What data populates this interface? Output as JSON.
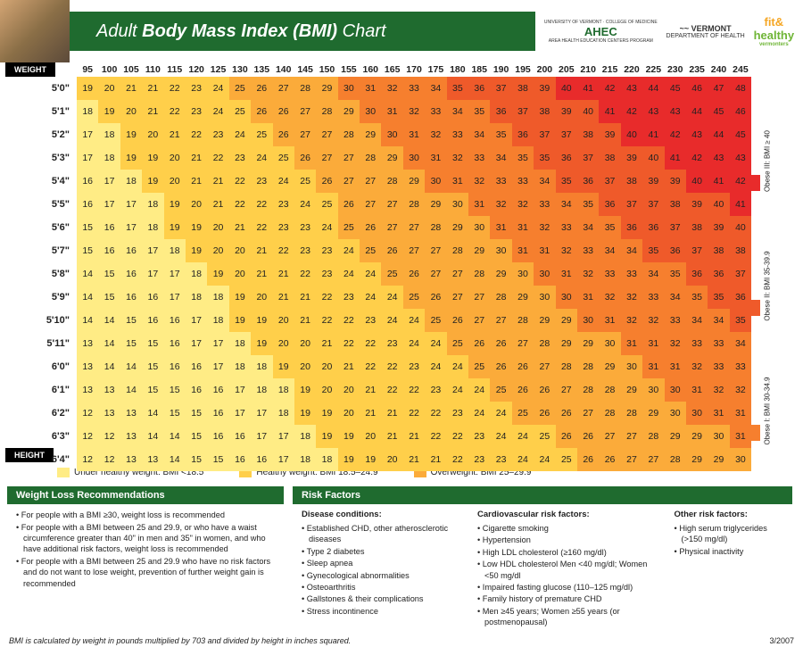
{
  "header": {
    "title_pre": "Adult ",
    "title_bold": "Body Mass Index (BMI)",
    "title_post": " Chart",
    "logos": {
      "ahec": "AHEC",
      "ahec_sub": "AREA HEALTH EDUCATION CENTERS PROGRAM",
      "ahec_top": "UNIVERSITY OF VERMONT · COLLEGE OF MEDICINE",
      "vt_top": "VERMONT",
      "vt_sub": "DEPARTMENT OF HEALTH",
      "fit_a": "fit&",
      "fit_b": "healthy",
      "fit_sub": "vermonters"
    }
  },
  "axis": {
    "weight_label": "WEIGHT",
    "height_label": "HEIGHT"
  },
  "weights": [
    95,
    100,
    105,
    110,
    115,
    120,
    125,
    130,
    135,
    140,
    145,
    150,
    155,
    160,
    165,
    170,
    175,
    180,
    185,
    190,
    195,
    200,
    205,
    210,
    215,
    220,
    225,
    230,
    235,
    240,
    245
  ],
  "heights": [
    "5'0\"",
    "5'1\"",
    "5'2\"",
    "5'3\"",
    "5'4\"",
    "5'5\"",
    "5'6\"",
    "5'7\"",
    "5'8\"",
    "5'9\"",
    "5'10\"",
    "5'11\"",
    "6'0\"",
    "6'1\"",
    "6'2\"",
    "6'3\"",
    "6'4\""
  ],
  "heights_in": [
    60,
    61,
    62,
    63,
    64,
    65,
    66,
    67,
    68,
    69,
    70,
    71,
    72,
    73,
    74,
    75,
    76
  ],
  "colors": {
    "under": "#ffec85",
    "healthy": "#ffcf4a",
    "over": "#fbab3a",
    "obese1": "#f67f2e",
    "obese2": "#ef5a2a",
    "obese3": "#e82b2b",
    "header_green": "#1f6b2f"
  },
  "legend": {
    "under": "Under healthy weight: BMI <18.5",
    "healthy": "Healthy weight: BMI 18.5–24.9",
    "over": "Overweight: BMI 25–29.9",
    "side": {
      "o1": "Obese I: BMI 30-34.9",
      "o2": "Obese II: BMI 35-39.9",
      "o3": "Obese III: BMI ≥ 40"
    }
  },
  "recs": {
    "title": "Weight Loss Recommendations",
    "items": [
      "For people with a BMI ≥30, weight loss is recommended",
      "For people with a BMI between 25 and 29.9, or who have a waist circumference greater than 40\" in men and 35\" in women, and who have additional risk factors, weight loss is recommended",
      "For people with a BMI between 25 and 29.9 who have no risk factors and do not want to lose weight, prevention of further weight gain is recommended"
    ]
  },
  "risk": {
    "title": "Risk Factors",
    "disease_h": "Disease conditions:",
    "disease": [
      "Established CHD, other atherosclerotic diseases",
      "Type 2 diabetes",
      "Sleep apnea",
      "Gynecological abnormalities",
      "Osteoarthritis",
      "Gallstones & their complications",
      "Stress incontinence"
    ],
    "cardio_h": "Cardiovascular risk factors:",
    "cardio": [
      "Cigarette smoking",
      "Hypertension",
      "High LDL cholesterol (≥160 mg/dl)",
      "Low HDL cholesterol Men <40 mg/dl; Women <50 mg/dl",
      "Impaired fasting glucose (110–125 mg/dl)",
      "Family history of premature CHD",
      "Men ≥45 years; Women ≥55 years (or postmenopausal)"
    ],
    "other_h": "Other risk factors:",
    "other": [
      "High serum triglycerides (>150 mg/dl)",
      "Physical inactivity"
    ]
  },
  "footer": {
    "formula": "BMI is calculated by weight in pounds multiplied by 703 and divided by height in inches squared.",
    "date": "3/2007"
  }
}
